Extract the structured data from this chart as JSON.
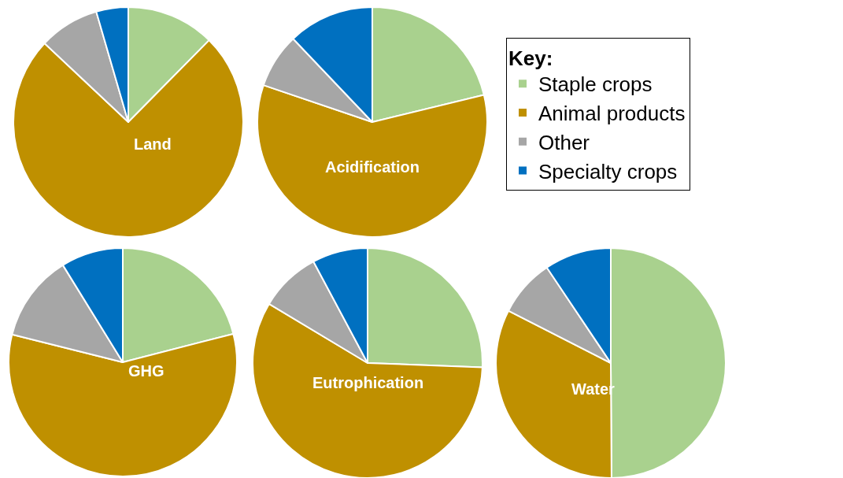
{
  "chart_data": [
    {
      "type": "pie",
      "title": "Land",
      "categories": [
        "Staple crops",
        "Animal products",
        "Other",
        "Specialty crops"
      ],
      "values": [
        12.4,
        74.6,
        8.5,
        4.5
      ],
      "colors": [
        "#a9d18e",
        "#bf9000",
        "#a6a6a6",
        "#0070c0"
      ],
      "legend": "right",
      "legend_title": "Key:"
    },
    {
      "type": "pie",
      "title": "Acidification",
      "categories": [
        null,
        null,
        null,
        null
      ],
      "values": [
        21.2,
        59.0,
        7.7,
        12.1
      ],
      "colors": [
        "#a9d18e",
        "#bf9000",
        "#a6a6a6",
        "#0070c0"
      ]
    },
    {
      "type": "pie",
      "title": "GHG",
      "categories": [
        null,
        null,
        null,
        null
      ],
      "values": [
        21.0,
        57.9,
        12.3,
        8.8
      ],
      "colors": [
        "#a9d18e",
        "#bf9000",
        "#a6a6a6",
        "#0070c0"
      ]
    },
    {
      "type": "pie",
      "title": "Eutrophication",
      "categories": [
        null,
        null,
        null,
        null
      ],
      "values": [
        25.6,
        58.0,
        8.6,
        7.8
      ],
      "colors": [
        "#a9d18e",
        "#bf9000",
        "#a6a6a6",
        "#0070c0"
      ]
    },
    {
      "type": "pie",
      "title": "Water",
      "categories": [
        null,
        null,
        null,
        null
      ],
      "values": [
        49.9,
        32.6,
        8.1,
        9.4
      ],
      "colors": [
        "#a9d18e",
        "#bf9000",
        "#a6a6a6",
        "#0070c0"
      ]
    }
  ]
}
